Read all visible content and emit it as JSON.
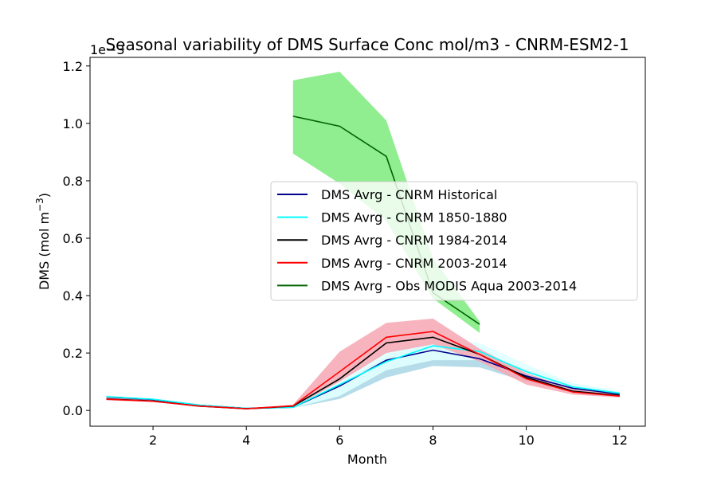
{
  "chart_data": {
    "type": "line",
    "title": "Seasonal variability of DMS Surface Conc mol/m3 - CNRM-ESM2-1",
    "xlabel": "Month",
    "ylabel_main": "DMS (mol m",
    "ylabel_sup": "−3",
    "ylabel_end": ")",
    "y_offset_label": "1e−3",
    "xlim": [
      0.65,
      12.55
    ],
    "ylim": [
      -0.055,
      1.23
    ],
    "xticks": [
      2,
      4,
      6,
      8,
      10,
      12
    ],
    "xtick_labels": [
      "2",
      "4",
      "6",
      "8",
      "10",
      "12"
    ],
    "yticks": [
      0.0,
      0.2,
      0.4,
      0.6,
      0.8,
      1.0,
      1.2
    ],
    "ytick_labels": [
      "0.0",
      "0.2",
      "0.4",
      "0.6",
      "0.8",
      "1.0",
      "1.2"
    ],
    "legend_position": "center-right",
    "bands": [
      {
        "id": "band-historical",
        "color": "#add8e6",
        "opacity": 0.9,
        "x": [
          1,
          2,
          3,
          4,
          5,
          6,
          7,
          8,
          9,
          10,
          11,
          12
        ],
        "lower": [
          0.043,
          0.035,
          0.015,
          0.005,
          0.008,
          0.04,
          0.115,
          0.155,
          0.15,
          0.1,
          0.07,
          0.05
        ],
        "upper": [
          0.052,
          0.042,
          0.022,
          0.01,
          0.015,
          0.09,
          0.19,
          0.235,
          0.205,
          0.145,
          0.09,
          0.065
        ]
      },
      {
        "id": "band-1850",
        "color": "#e0ffff",
        "opacity": 0.9,
        "x": [
          1,
          2,
          3,
          4,
          5,
          6,
          7,
          8,
          9,
          10,
          11,
          12
        ],
        "lower": [
          0.043,
          0.035,
          0.015,
          0.005,
          0.008,
          0.05,
          0.14,
          0.175,
          0.175,
          0.11,
          0.07,
          0.05
        ],
        "upper": [
          0.052,
          0.042,
          0.022,
          0.01,
          0.015,
          0.12,
          0.21,
          0.245,
          0.235,
          0.16,
          0.095,
          0.07
        ]
      },
      {
        "id": "band-2003",
        "color": "#f7a7b3",
        "opacity": 0.85,
        "x": [
          1,
          2,
          3,
          4,
          5,
          6,
          7,
          8,
          9,
          10,
          11,
          12
        ],
        "lower": [
          0.035,
          0.03,
          0.012,
          0.004,
          0.01,
          0.1,
          0.2,
          0.23,
          0.17,
          0.09,
          0.055,
          0.045
        ],
        "upper": [
          0.045,
          0.037,
          0.018,
          0.008,
          0.02,
          0.205,
          0.305,
          0.32,
          0.215,
          0.13,
          0.075,
          0.055
        ]
      },
      {
        "id": "band-obs",
        "color": "#90ee90",
        "opacity": 1.0,
        "x": [
          5,
          6,
          7,
          8,
          9
        ],
        "lower": [
          0.895,
          0.79,
          0.66,
          0.39,
          0.27
        ],
        "upper": [
          1.15,
          1.18,
          1.01,
          0.53,
          0.31
        ]
      }
    ],
    "series": [
      {
        "name": "DMS Avrg - CNRM Historical",
        "color": "#00008b",
        "x": [
          1,
          2,
          3,
          4,
          5,
          6,
          7,
          8,
          9,
          10,
          11,
          12
        ],
        "values": [
          0.047,
          0.038,
          0.018,
          0.007,
          0.011,
          0.085,
          0.175,
          0.21,
          0.18,
          0.12,
          0.077,
          0.057
        ]
      },
      {
        "name": "DMS Avrg - CNRM 1850-1880",
        "color": "#00ffff",
        "x": [
          1,
          2,
          3,
          4,
          5,
          6,
          7,
          8,
          9,
          10,
          11,
          12
        ],
        "values": [
          0.048,
          0.039,
          0.018,
          0.007,
          0.011,
          0.09,
          0.17,
          0.225,
          0.205,
          0.135,
          0.082,
          0.06
        ]
      },
      {
        "name": "DMS Avrg - CNRM 1984-2014",
        "color": "#000000",
        "x": [
          1,
          2,
          3,
          4,
          5,
          6,
          7,
          8,
          9,
          10,
          11,
          12
        ],
        "values": [
          0.04,
          0.033,
          0.015,
          0.006,
          0.015,
          0.11,
          0.235,
          0.255,
          0.195,
          0.115,
          0.067,
          0.052
        ]
      },
      {
        "name": "DMS Avrg - CNRM 2003-2014",
        "color": "#ff0000",
        "x": [
          1,
          2,
          3,
          4,
          5,
          6,
          7,
          8,
          9,
          10,
          11,
          12
        ],
        "values": [
          0.039,
          0.032,
          0.015,
          0.006,
          0.016,
          0.135,
          0.255,
          0.275,
          0.195,
          0.11,
          0.064,
          0.05
        ]
      },
      {
        "name": "DMS Avrg - Obs MODIS Aqua 2003-2014",
        "color": "#006400",
        "x": [
          5,
          6,
          7,
          8,
          9
        ],
        "values": [
          1.025,
          0.99,
          0.885,
          0.41,
          0.3
        ]
      }
    ]
  }
}
